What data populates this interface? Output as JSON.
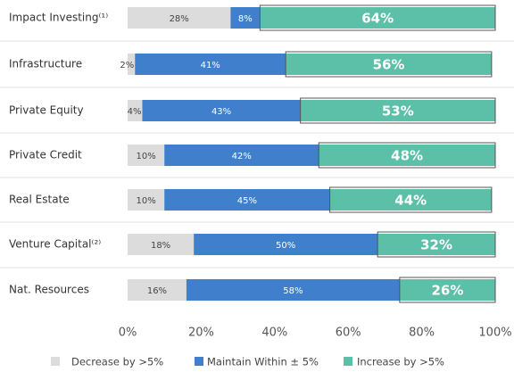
{
  "chart_data": {
    "type": "stacked_bar_horizontal",
    "categories": [
      "Impact Investing⁽¹⁾",
      "Infrastructure",
      "Private Equity",
      "Private Credit",
      "Real Estate",
      "Venture Capital⁽²⁾",
      "Nat. Resources"
    ],
    "series": [
      {
        "name": "Decrease by >5%",
        "color": "#dcdcdc",
        "values": [
          28,
          2,
          4,
          10,
          10,
          18,
          16
        ],
        "value_labels": [
          "28%",
          "2%",
          "4%",
          "10%",
          "10%",
          "18%",
          "16%"
        ]
      },
      {
        "name": "Maintain Within ± 5%",
        "color": "#3f7fcb",
        "values": [
          8,
          41,
          43,
          42,
          45,
          50,
          58
        ],
        "value_labels": [
          "8%",
          "41%",
          "43%",
          "42%",
          "45%",
          "50%",
          "58%"
        ]
      },
      {
        "name": "Increase by >5%",
        "color": "#5cc0a9",
        "values": [
          64,
          56,
          53,
          48,
          44,
          32,
          26
        ],
        "value_labels": [
          "64%",
          "56%",
          "53%",
          "48%",
          "44%",
          "32%",
          "26%"
        ]
      }
    ],
    "xlim": [
      0,
      100
    ],
    "xticks": [
      {
        "value": 0,
        "label": "0%"
      },
      {
        "value": 20,
        "label": "20%"
      },
      {
        "value": 40,
        "label": "40%"
      },
      {
        "value": 60,
        "label": "60%"
      },
      {
        "value": 80,
        "label": "80%"
      },
      {
        "value": 100,
        "label": "100%"
      }
    ],
    "legend": "bottom"
  }
}
